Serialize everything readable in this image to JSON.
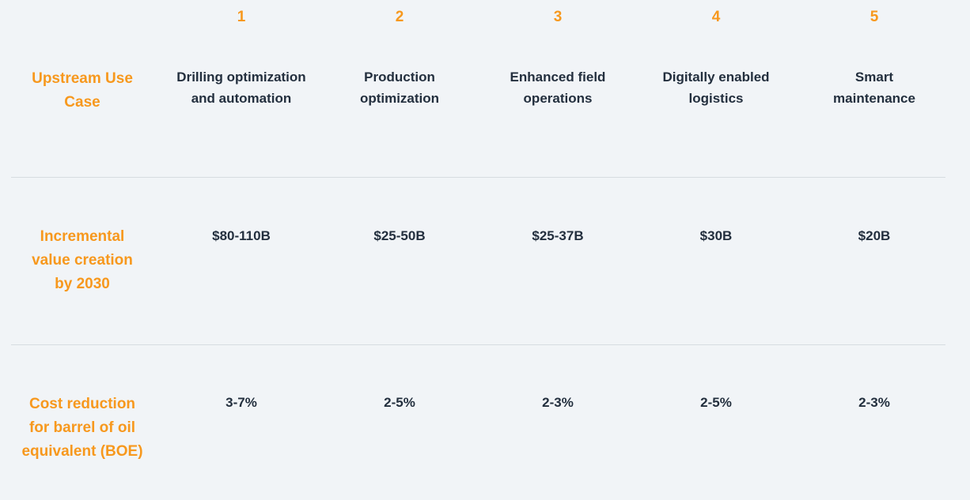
{
  "columns": [
    {
      "number": "1",
      "title": "Drilling optimization and automation"
    },
    {
      "number": "2",
      "title": "Production optimization"
    },
    {
      "number": "3",
      "title": "Enhanced field operations"
    },
    {
      "number": "4",
      "title": "Digitally enabled logistics"
    },
    {
      "number": "5",
      "title": "Smart maintenance"
    }
  ],
  "rows": [
    {
      "label": "Upstream Use Case"
    },
    {
      "label": "Incremental value creation by 2030",
      "values": [
        "$80-110B",
        "$25-50B",
        "$25-37B",
        "$30B",
        "$20B"
      ]
    },
    {
      "label": "Cost reduction for barrel of oil equivalent (BOE)",
      "values": [
        "3-7%",
        "2-5%",
        "2-3%",
        "2-5%",
        "2-3%"
      ]
    }
  ],
  "colors": {
    "accent": "#f7981d",
    "text": "#232f3e",
    "background": "#f1f4f7",
    "divider": "#d7dce1"
  }
}
